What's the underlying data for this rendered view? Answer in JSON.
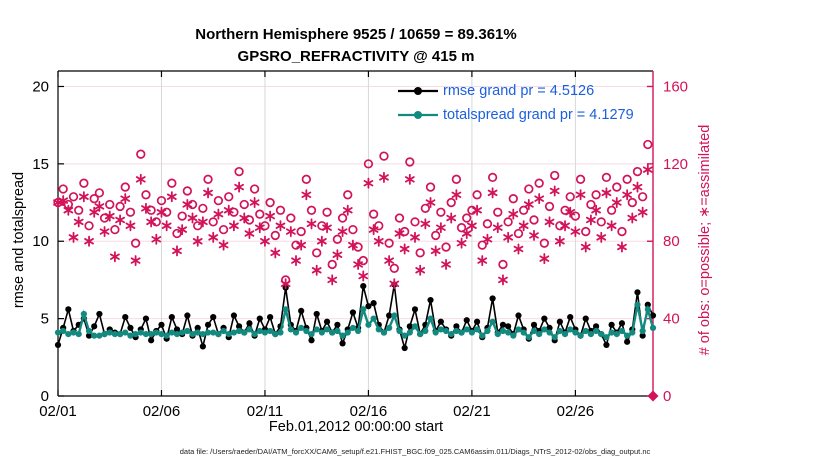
{
  "figure": {
    "title_line1": "Northern Hemisphere 9525 / 10659 = 89.361%",
    "title_line2": "GPSRO_REFRACTIVITY @ 415 m",
    "xlabel": "Feb.01,2012 00:00:00 start",
    "ylabel_left": "rmse and totalspread",
    "ylabel_right": "# of obs: o=possible; ∗=assimilated",
    "footer": "data file: /Users/raeder/DAI/ATM_forcXX/CAM6_setup/f.e21.FHIST_BGC.f09_025.CAM6assim.011/Diags_NTrS_2012-02/obs_diag_output.nc",
    "colors": {
      "crimson": "#d2135a",
      "teal": "#138a80",
      "black": "#000000",
      "legend_text": "#1a5fe0",
      "grid_horizontal": "#f7dbe5",
      "grid_vertical": "#d8d8d8"
    }
  },
  "legend": [
    {
      "label": "rmse grand pr = 4.5126",
      "color": "#000000"
    },
    {
      "label": "totalspread grand pr = 4.1279",
      "color": "#138a80"
    }
  ],
  "chart_data": {
    "type": "line",
    "title": "Northern Hemisphere 9525 / 10659 = 89.361% | GPSRO_REFRACTIVITY @ 415 m",
    "x_unit": "days since Feb.01,2012 00:00:00, 6-hourly samples",
    "x_step_days": 0.25,
    "x_range": [
      0,
      28.75
    ],
    "x_ticks": [
      {
        "t": 0,
        "label": "02/01"
      },
      {
        "t": 5,
        "label": "02/06"
      },
      {
        "t": 10,
        "label": "02/11"
      },
      {
        "t": 15,
        "label": "02/16"
      },
      {
        "t": 20,
        "label": "02/21"
      },
      {
        "t": 25,
        "label": "02/26"
      }
    ],
    "left_axis": {
      "label": "rmse and totalspread",
      "ticks": [
        0,
        5,
        10,
        15,
        20
      ],
      "range": [
        0,
        21
      ]
    },
    "right_axis": {
      "label": "# of obs: o=possible; ∗=assimilated",
      "ticks": [
        0,
        40,
        80,
        120,
        160
      ],
      "range": [
        0,
        168
      ]
    },
    "grid": true,
    "legend_position": "upper-center-right",
    "series": [
      {
        "name": "rmse",
        "axis": "left",
        "style": "line-dot",
        "color": "#000000",
        "values": [
          3.3,
          4.4,
          5.6,
          4.2,
          4.6,
          5.0,
          3.9,
          4.5,
          5.3,
          4.0,
          4.3,
          4.1,
          4.0,
          5.1,
          4.4,
          3.8,
          4.3,
          5.0,
          3.6,
          4.2,
          4.6,
          3.7,
          5.1,
          4.3,
          4.0,
          5.2,
          3.9,
          4.4,
          3.2,
          4.6,
          5.1,
          4.0,
          4.4,
          3.8,
          5.2,
          4.5,
          4.1,
          4.7,
          3.9,
          5.0,
          4.3,
          5.1,
          4.0,
          4.5,
          7.0,
          4.6,
          4.2,
          5.5,
          4.4,
          3.6,
          5.3,
          4.2,
          4.8,
          4.1,
          4.6,
          3.4,
          4.3,
          5.4,
          4.4,
          7.1,
          5.8,
          6.0,
          4.6,
          4.1,
          5.2,
          7.2,
          4.3,
          3.1,
          4.5,
          5.6,
          4.0,
          4.6,
          6.2,
          4.2,
          4.8,
          4.3,
          3.9,
          4.5,
          4.1,
          4.9,
          4.2,
          4.8,
          3.8,
          4.4,
          6.3,
          4.1,
          4.6,
          4.5,
          4.0,
          5.2,
          4.3,
          3.7,
          4.6,
          4.2,
          5.0,
          4.4,
          3.6,
          4.8,
          4.1,
          5.1,
          4.3,
          3.9,
          5.0,
          4.2,
          4.5,
          4.0,
          3.3,
          4.6,
          4.1,
          4.7,
          3.5,
          4.3,
          6.7,
          3.9,
          5.9,
          5.2
        ]
      },
      {
        "name": "totalspread",
        "axis": "left",
        "style": "line-dot",
        "color": "#138a80",
        "values": [
          4.1,
          4.2,
          4.0,
          4.1,
          4.0,
          5.3,
          4.2,
          3.9,
          3.9,
          4.0,
          4.1,
          4.0,
          4.0,
          4.1,
          3.9,
          4.0,
          4.1,
          4.0,
          4.0,
          4.1,
          4.0,
          3.9,
          4.1,
          4.0,
          4.1,
          4.2,
          4.0,
          4.1,
          4.0,
          4.1,
          4.1,
          4.0,
          4.2,
          4.0,
          4.1,
          4.2,
          4.1,
          4.3,
          4.0,
          4.2,
          4.1,
          4.2,
          4.0,
          4.1,
          5.6,
          4.3,
          4.1,
          4.4,
          4.2,
          4.0,
          4.3,
          4.1,
          4.3,
          4.1,
          4.2,
          3.9,
          4.1,
          4.4,
          4.2,
          5.6,
          4.6,
          5.0,
          4.3,
          4.1,
          4.4,
          5.2,
          4.2,
          3.9,
          4.1,
          4.5,
          4.0,
          4.2,
          5.0,
          4.1,
          4.3,
          4.2,
          4.0,
          4.2,
          4.1,
          4.3,
          4.1,
          4.3,
          3.9,
          4.2,
          4.8,
          4.0,
          4.2,
          4.1,
          3.9,
          4.3,
          4.1,
          3.8,
          4.2,
          4.0,
          4.3,
          4.1,
          3.8,
          4.2,
          4.0,
          4.3,
          4.1,
          3.9,
          4.2,
          4.0,
          4.2,
          4.0,
          3.8,
          4.1,
          4.0,
          4.2,
          3.9,
          4.1,
          5.9,
          4.2,
          5.6,
          4.4
        ]
      },
      {
        "name": "possible",
        "axis": "right",
        "style": "open-circle",
        "color": "#d2135a",
        "values": [
          100,
          107,
          99,
          103,
          96,
          110,
          88,
          102,
          105,
          92,
          99,
          86,
          98,
          108,
          95,
          79,
          125,
          104,
          96,
          90,
          101,
          95,
          110,
          84,
          93,
          106,
          99,
          88,
          97,
          112,
          90,
          101,
          86,
          103,
          95,
          116,
          99,
          91,
          107,
          94,
          88,
          100,
          83,
          96,
          60,
          92,
          78,
          85,
          112,
          96,
          74,
          88,
          95,
          68,
          81,
          92,
          104,
          86,
          77,
          70,
          120,
          94,
          88,
          124,
          79,
          66,
          92,
          85,
          121,
          90,
          74,
          97,
          108,
          83,
          95,
          77,
          100,
          112,
          87,
          92,
          96,
          104,
          78,
          89,
          113,
          95,
          68,
          90,
          102,
          84,
          96,
          107,
          91,
          110,
          79,
          98,
          114,
          88,
          96,
          103,
          93,
          112,
          85,
          99,
          104,
          90,
          113,
          96,
          108,
          85,
          112,
          100,
          116,
          103,
          130,
          0
        ]
      },
      {
        "name": "assimilated",
        "axis": "right",
        "style": "asterisk",
        "color": "#d2135a",
        "values": [
          100,
          101,
          96,
          82,
          90,
          103,
          80,
          95,
          98,
          85,
          93,
          72,
          91,
          102,
          88,
          70,
          112,
          97,
          90,
          81,
          95,
          88,
          103,
          75,
          86,
          99,
          92,
          80,
          90,
          105,
          82,
          94,
          78,
          96,
          88,
          108,
          92,
          84,
          100,
          87,
          80,
          93,
          74,
          88,
          58,
          85,
          70,
          78,
          104,
          89,
          65,
          80,
          87,
          60,
          73,
          85,
          96,
          78,
          68,
          62,
          110,
          86,
          80,
          113,
          70,
          58,
          84,
          76,
          112,
          82,
          65,
          89,
          100,
          75,
          87,
          68,
          92,
          104,
          79,
          84,
          88,
          96,
          70,
          81,
          105,
          87,
          60,
          82,
          94,
          76,
          88,
          99,
          83,
          102,
          71,
          90,
          106,
          80,
          88,
          95,
          85,
          104,
          77,
          91,
          96,
          82,
          105,
          88,
          100,
          77,
          104,
          92,
          108,
          95,
          117,
          0
        ]
      }
    ],
    "final_zero_marker": {
      "t": 28.75,
      "value": 0,
      "shape": "diamond",
      "axis": "right"
    }
  }
}
